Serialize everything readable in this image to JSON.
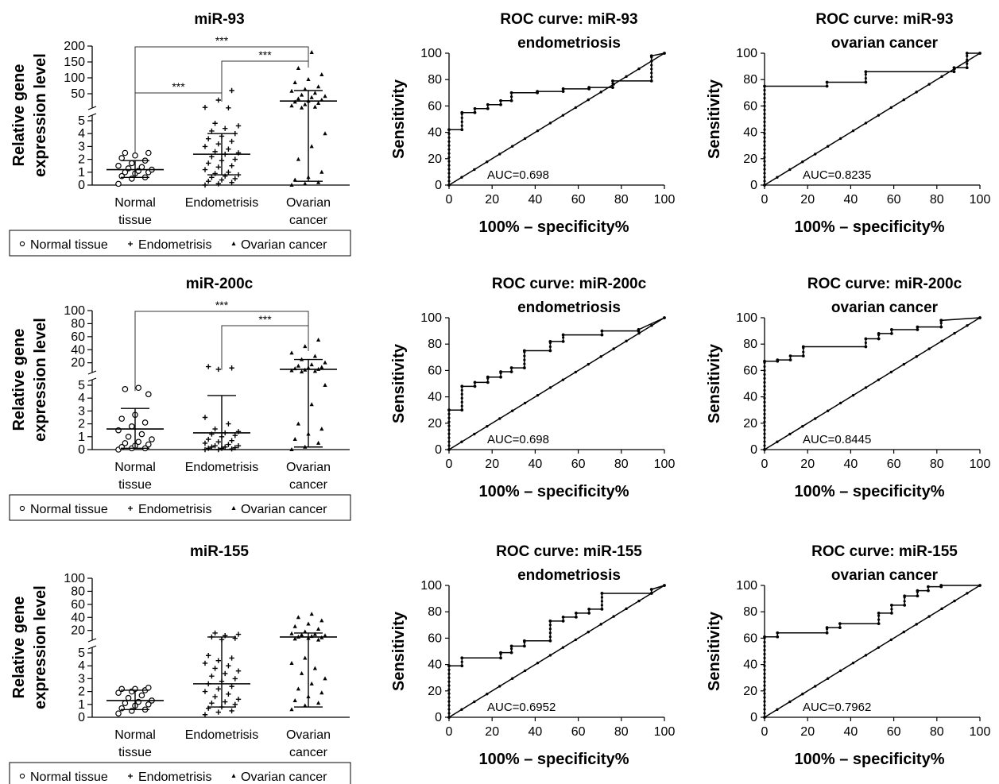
{
  "chart_data": [
    {
      "type": "scatter",
      "title": "miR-93",
      "ylabel": [
        "Relative gene",
        "expression level"
      ],
      "categories": [
        [
          "Normal",
          "tissue"
        ],
        [
          "Endometrisis"
        ],
        [
          "Ovarian",
          "cancer"
        ]
      ],
      "y_scale": "broken",
      "y_ticks_lower": [
        "0",
        "1",
        "2",
        "3",
        "4",
        "5"
      ],
      "y_ticks_upper": [
        "50",
        "100",
        "150",
        "200"
      ],
      "legend": [
        "Normal tissue",
        "Endometrisis",
        "Ovarian cancer"
      ],
      "significance": [
        {
          "pair": [
            "Normal tissue",
            "Ovarian cancer"
          ],
          "label": "***"
        },
        {
          "pair": [
            "Endometrisis",
            "Ovarian cancer"
          ],
          "label": "***"
        },
        {
          "pair": [
            "Normal tissue",
            "Endometrisis"
          ],
          "label": "***"
        }
      ],
      "series": [
        {
          "name": "Normal tissue",
          "marker": "circle",
          "median": 1.2,
          "q1": 0.6,
          "q3": 1.9,
          "values": [
            0.1,
            0.5,
            0.6,
            0.7,
            0.9,
            1.0,
            1.0,
            1.1,
            1.2,
            1.3,
            1.4,
            1.5,
            1.7,
            1.9,
            2.1,
            2.3,
            2.5,
            2.5
          ]
        },
        {
          "name": "Endometrisis",
          "marker": "plus",
          "median": 2.4,
          "q1": 0.8,
          "q3": 4.0,
          "values": [
            0.0,
            0.1,
            0.2,
            0.3,
            0.4,
            0.5,
            0.6,
            0.7,
            0.8,
            0.9,
            1.0,
            1.2,
            1.4,
            1.5,
            1.7,
            1.9,
            2.0,
            2.2,
            2.4,
            2.5,
            2.6,
            2.8,
            3.0,
            3.2,
            3.4,
            3.6,
            3.8,
            4.0,
            4.2,
            4.4,
            4.6,
            4.8,
            5.5,
            7.0,
            30,
            60
          ]
        },
        {
          "name": "Ovarian cancer",
          "marker": "triangle",
          "median": 27,
          "q1": 0.3,
          "q3": 60,
          "values": [
            0.0,
            0.1,
            0.2,
            0.4,
            0.6,
            1.0,
            2.0,
            3.0,
            4.0,
            5.5,
            8,
            12,
            16,
            20,
            24,
            27,
            30,
            34,
            38,
            42,
            46,
            52,
            58,
            64,
            72,
            85,
            95,
            110,
            130,
            180
          ]
        }
      ]
    },
    {
      "type": "line",
      "title": [
        "ROC curve: miR-93",
        "endometriosis"
      ],
      "xlabel": "100% – specificity%",
      "ylabel": "Sensitivity",
      "xlim": [
        0,
        100
      ],
      "ylim": [
        0,
        100
      ],
      "x_ticks": [
        "0",
        "20",
        "40",
        "60",
        "80",
        "100"
      ],
      "y_ticks": [
        "0",
        "20",
        "40",
        "60",
        "80",
        "100"
      ],
      "annotation": "AUC=0.698",
      "series": [
        {
          "role": "roc",
          "x": [
            0,
            0,
            6,
            6,
            12,
            12,
            18,
            18,
            24,
            24,
            29,
            29,
            41,
            41,
            53,
            53,
            65,
            65,
            76,
            76,
            94,
            94,
            100
          ],
          "y": [
            0,
            42,
            42,
            55,
            55,
            58,
            58,
            61,
            61,
            64,
            64,
            70,
            70,
            71,
            71,
            73,
            73,
            74,
            74,
            79,
            79,
            98,
            100
          ]
        },
        {
          "role": "reference",
          "x": [
            0,
            100
          ],
          "y": [
            0,
            100
          ]
        }
      ]
    },
    {
      "type": "line",
      "title": [
        "ROC curve: miR-93",
        "ovarian cancer"
      ],
      "xlabel": "100% – specificity%",
      "ylabel": "Sensitivity",
      "xlim": [
        0,
        100
      ],
      "ylim": [
        0,
        100
      ],
      "x_ticks": [
        "0",
        "20",
        "40",
        "60",
        "80",
        "100"
      ],
      "y_ticks": [
        "0",
        "20",
        "40",
        "60",
        "80",
        "100"
      ],
      "annotation": "AUC=0.8235",
      "series": [
        {
          "role": "roc",
          "x": [
            0,
            0,
            29,
            29,
            47,
            47,
            88,
            88,
            94,
            94,
            100
          ],
          "y": [
            0,
            75,
            75,
            78,
            78,
            86,
            86,
            89,
            89,
            100,
            100
          ]
        },
        {
          "role": "reference",
          "x": [
            0,
            100
          ],
          "y": [
            0,
            100
          ]
        }
      ]
    },
    {
      "type": "scatter",
      "title": "miR-200c",
      "ylabel": [
        "Relative gene",
        "expression level"
      ],
      "categories": [
        [
          "Normal",
          "tissue"
        ],
        [
          "Endometrisis"
        ],
        [
          "Ovarian",
          "cancer"
        ]
      ],
      "y_scale": "broken",
      "y_ticks_lower": [
        "0",
        "1",
        "2",
        "3",
        "4",
        "5"
      ],
      "y_ticks_upper": [
        "20",
        "40",
        "60",
        "80",
        "100"
      ],
      "legend": [
        "Normal tissue",
        "Endometrisis",
        "Ovarian cancer"
      ],
      "significance": [
        {
          "pair": [
            "Normal tissue",
            "Ovarian cancer"
          ],
          "label": "***"
        },
        {
          "pair": [
            "Endometrisis",
            "Ovarian cancer"
          ],
          "label": "***"
        }
      ],
      "series": [
        {
          "name": "Normal tissue",
          "marker": "circle",
          "median": 1.6,
          "q1": 0.1,
          "q3": 3.2,
          "values": [
            0.0,
            0.1,
            0.1,
            0.2,
            0.3,
            0.4,
            0.5,
            0.6,
            0.8,
            1.0,
            1.2,
            1.5,
            1.8,
            2.1,
            2.4,
            2.7,
            4.3,
            4.7,
            4.8
          ]
        },
        {
          "name": "Endometrisis",
          "marker": "plus",
          "median": 1.3,
          "q1": 0.0,
          "q3": 4.2,
          "values": [
            0.0,
            0.0,
            0.05,
            0.1,
            0.1,
            0.15,
            0.2,
            0.2,
            0.3,
            0.3,
            0.4,
            0.5,
            0.6,
            0.7,
            0.8,
            1.0,
            1.1,
            1.2,
            1.3,
            1.4,
            1.6,
            2.0,
            2.5,
            10,
            12,
            14
          ]
        },
        {
          "name": "Ovarian cancer",
          "marker": "triangle",
          "median": 10,
          "q1": 0.2,
          "q3": 25,
          "values": [
            0.0,
            0.2,
            0.5,
            0.8,
            1.2,
            1.6,
            2.0,
            3.5,
            5,
            6,
            7,
            8,
            9,
            10,
            11,
            12,
            13,
            15,
            17,
            20,
            25,
            30,
            35,
            45,
            55
          ]
        }
      ]
    },
    {
      "type": "line",
      "title": [
        "ROC curve: miR-200c",
        "endometriosis"
      ],
      "xlabel": "100% – specificity%",
      "ylabel": "Sensitivity",
      "xlim": [
        0,
        100
      ],
      "ylim": [
        0,
        100
      ],
      "x_ticks": [
        "0",
        "20",
        "40",
        "60",
        "80",
        "100"
      ],
      "y_ticks": [
        "0",
        "20",
        "40",
        "60",
        "80",
        "100"
      ],
      "annotation": "AUC=0.698",
      "series": [
        {
          "role": "roc",
          "x": [
            0,
            0,
            6,
            6,
            12,
            12,
            18,
            18,
            24,
            24,
            29,
            29,
            35,
            35,
            47,
            47,
            53,
            53,
            71,
            71,
            88,
            88,
            100
          ],
          "y": [
            0,
            30,
            30,
            48,
            48,
            51,
            51,
            55,
            55,
            59,
            59,
            62,
            62,
            75,
            75,
            82,
            82,
            87,
            87,
            90,
            90,
            91,
            100
          ]
        },
        {
          "role": "reference",
          "x": [
            0,
            100
          ],
          "y": [
            0,
            100
          ]
        }
      ]
    },
    {
      "type": "line",
      "title": [
        "ROC curve: miR-200c",
        "ovarian cancer"
      ],
      "xlabel": "100% – specificity%",
      "ylabel": "Sensitivity",
      "xlim": [
        0,
        100
      ],
      "ylim": [
        0,
        100
      ],
      "x_ticks": [
        "0",
        "20",
        "40",
        "60",
        "80",
        "100"
      ],
      "y_ticks": [
        "0",
        "20",
        "40",
        "60",
        "80",
        "100"
      ],
      "annotation": "AUC=0.8445",
      "series": [
        {
          "role": "roc",
          "x": [
            0,
            0,
            6,
            6,
            12,
            12,
            18,
            18,
            47,
            47,
            53,
            53,
            59,
            59,
            71,
            71,
            82,
            82,
            100
          ],
          "y": [
            0,
            67,
            67,
            68,
            68,
            71,
            71,
            78,
            78,
            84,
            84,
            88,
            88,
            91,
            91,
            93,
            93,
            98,
            100
          ]
        },
        {
          "role": "reference",
          "x": [
            0,
            100
          ],
          "y": [
            0,
            100
          ]
        }
      ]
    },
    {
      "type": "scatter",
      "title": "miR-155",
      "ylabel": [
        "Relative gene",
        "expression level"
      ],
      "categories": [
        [
          "Normal",
          "tissue"
        ],
        [
          "Endometrisis"
        ],
        [
          "Ovarian",
          "cancer"
        ]
      ],
      "y_scale": "broken",
      "y_ticks_lower": [
        "0",
        "1",
        "2",
        "3",
        "4",
        "5"
      ],
      "y_ticks_upper": [
        "20",
        "40",
        "60",
        "80",
        "100"
      ],
      "legend": [
        "Normal tissue",
        "Endometrisis",
        "Ovarian cancer"
      ],
      "significance": [],
      "series": [
        {
          "name": "Normal tissue",
          "marker": "circle",
          "median": 1.3,
          "q1": 0.6,
          "q3": 2.1,
          "values": [
            0.3,
            0.5,
            0.6,
            0.7,
            0.9,
            1.0,
            1.1,
            1.2,
            1.3,
            1.5,
            1.7,
            1.9,
            2.0,
            2.1,
            2.2,
            2.2,
            2.3
          ]
        },
        {
          "name": "Endometrisis",
          "marker": "plus",
          "median": 2.6,
          "q1": 0.8,
          "q3": 10,
          "values": [
            0.2,
            0.4,
            0.5,
            0.7,
            0.8,
            1.0,
            1.1,
            1.2,
            1.4,
            1.6,
            1.8,
            2.0,
            2.2,
            2.4,
            2.6,
            2.8,
            3.0,
            3.2,
            3.4,
            3.6,
            3.8,
            4.0,
            4.2,
            4.4,
            4.6,
            4.8,
            6,
            8,
            10,
            12,
            14,
            16
          ]
        },
        {
          "name": "Ovarian cancer",
          "marker": "triangle",
          "median": 10,
          "q1": 0.8,
          "q3": 16,
          "values": [
            0.6,
            0.9,
            1.1,
            1.3,
            1.6,
            1.9,
            2.2,
            2.6,
            3.0,
            3.4,
            3.8,
            4.2,
            4.6,
            5.5,
            7,
            8,
            9,
            10,
            11,
            12,
            13,
            14,
            15,
            18,
            22,
            26,
            30,
            35,
            40,
            45
          ]
        }
      ]
    },
    {
      "type": "line",
      "title": [
        "ROC curve: miR-155",
        "endometriosis"
      ],
      "xlabel": "100% – specificity%",
      "ylabel": "Sensitivity",
      "xlim": [
        0,
        100
      ],
      "ylim": [
        0,
        100
      ],
      "x_ticks": [
        "0",
        "20",
        "40",
        "60",
        "80",
        "100"
      ],
      "y_ticks": [
        "0",
        "20",
        "40",
        "60",
        "80",
        "100"
      ],
      "annotation": "AUC=0.6952",
      "series": [
        {
          "role": "roc",
          "x": [
            0,
            0,
            6,
            6,
            24,
            24,
            29,
            29,
            35,
            35,
            47,
            47,
            53,
            53,
            59,
            59,
            65,
            65,
            71,
            71,
            94,
            94,
            100
          ],
          "y": [
            0,
            39,
            39,
            45,
            45,
            49,
            49,
            54,
            54,
            58,
            58,
            73,
            73,
            76,
            76,
            79,
            79,
            82,
            82,
            94,
            94,
            97,
            100
          ]
        },
        {
          "role": "reference",
          "x": [
            0,
            100
          ],
          "y": [
            0,
            100
          ]
        }
      ]
    },
    {
      "type": "line",
      "title": [
        "ROC curve: miR-155",
        "ovarian cancer"
      ],
      "xlabel": "100% – specificity%",
      "ylabel": "Sensitivity",
      "xlim": [
        0,
        100
      ],
      "ylim": [
        0,
        100
      ],
      "x_ticks": [
        "0",
        "20",
        "40",
        "60",
        "80",
        "100"
      ],
      "y_ticks": [
        "0",
        "20",
        "40",
        "60",
        "80",
        "100"
      ],
      "annotation": "AUC=0.7962",
      "series": [
        {
          "role": "roc",
          "x": [
            0,
            0,
            6,
            6,
            29,
            29,
            35,
            35,
            53,
            53,
            59,
            59,
            65,
            65,
            71,
            71,
            76,
            76,
            82,
            82,
            100
          ],
          "y": [
            0,
            61,
            61,
            64,
            64,
            68,
            68,
            71,
            71,
            79,
            79,
            85,
            85,
            92,
            92,
            96,
            96,
            99,
            99,
            100,
            100
          ]
        },
        {
          "role": "reference",
          "x": [
            0,
            100
          ],
          "y": [
            0,
            100
          ]
        }
      ]
    }
  ]
}
